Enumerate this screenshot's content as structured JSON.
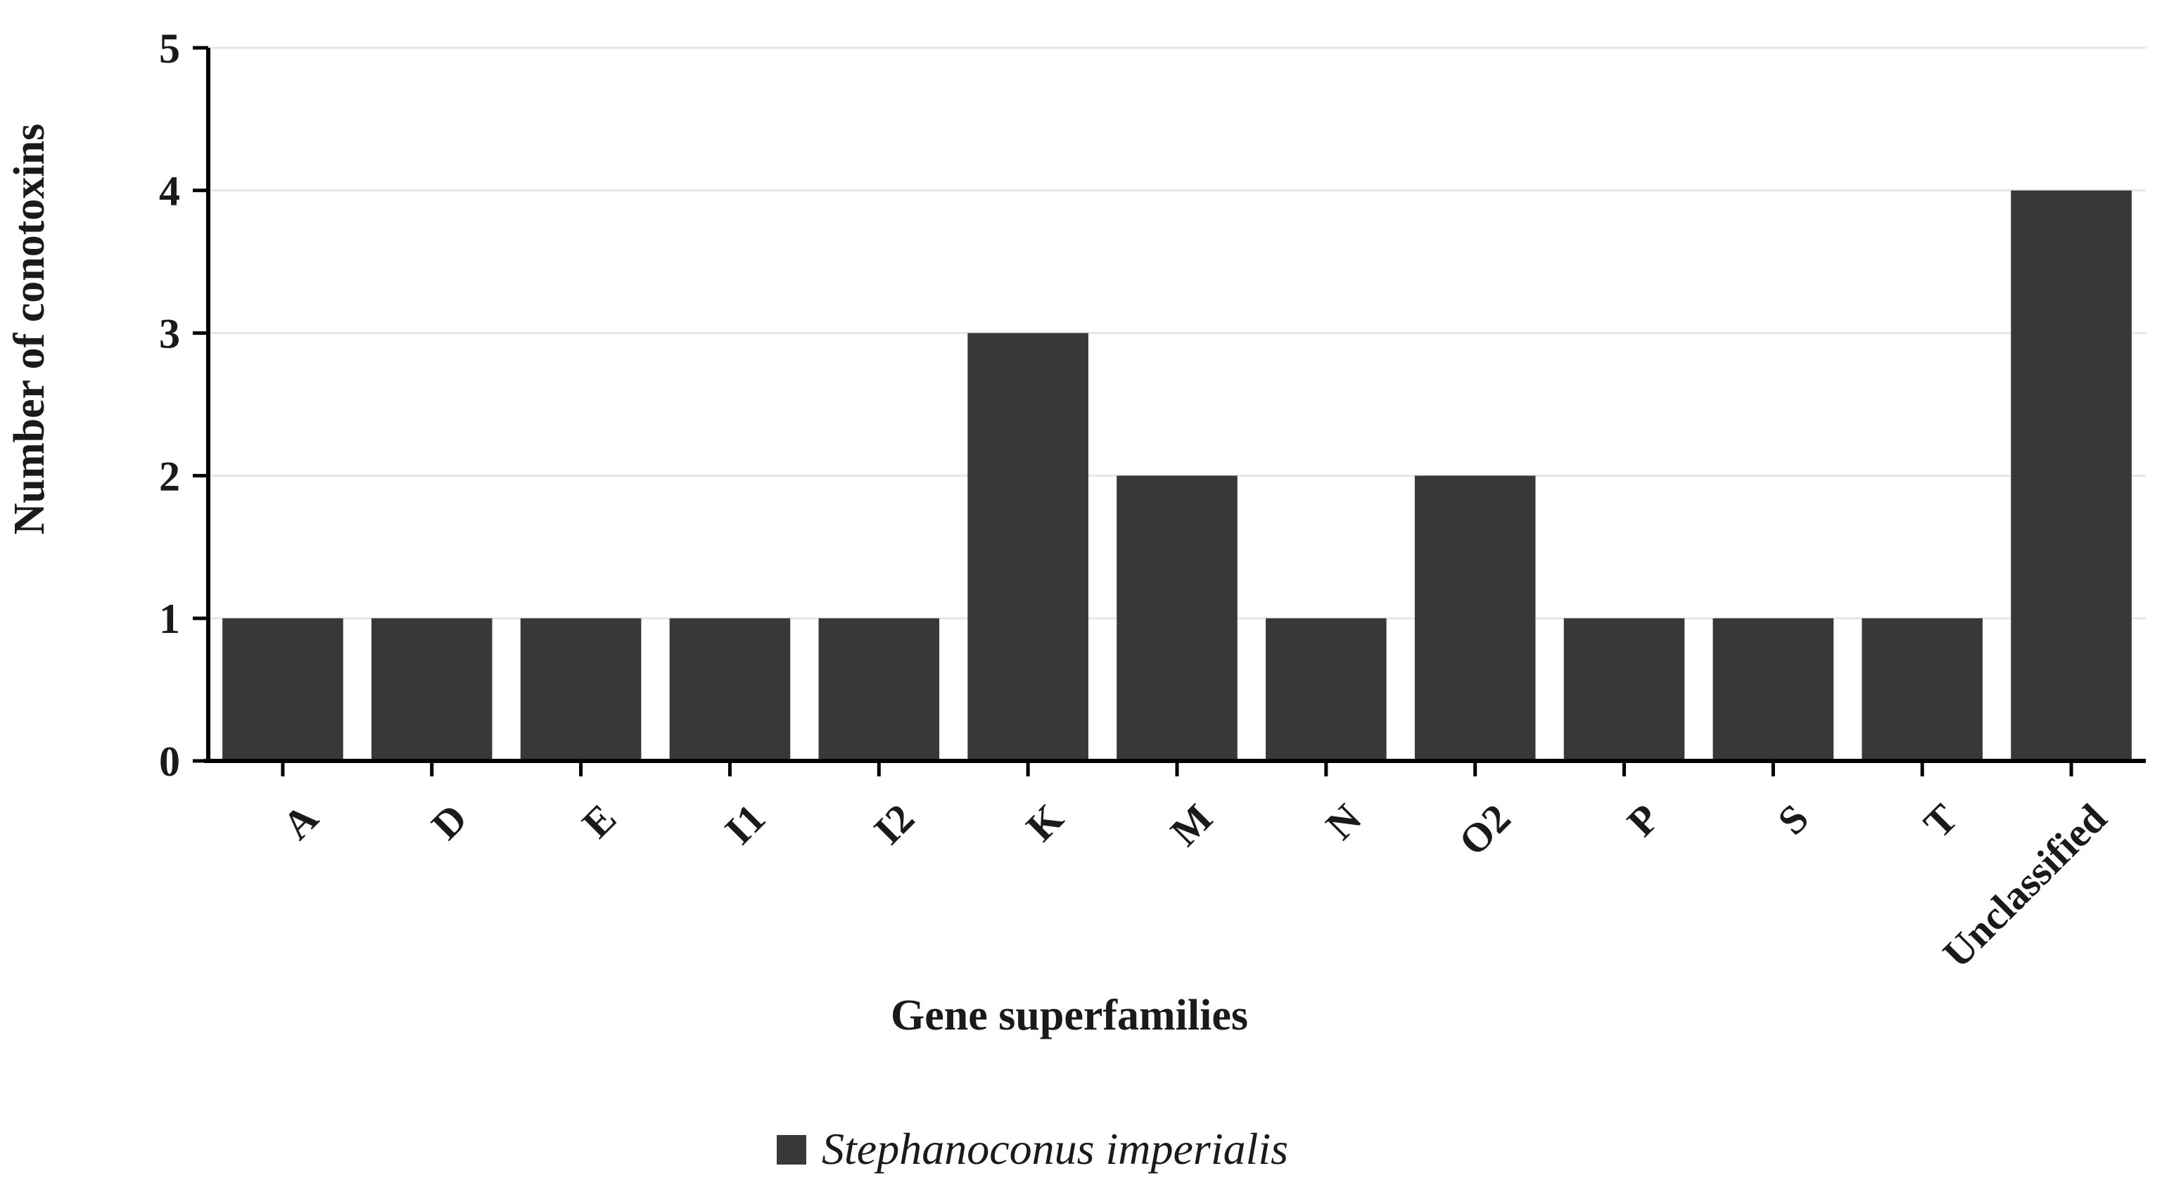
{
  "chart_data": {
    "type": "bar",
    "title": "",
    "xlabel": "Gene superfamilies",
    "ylabel": "Number of conotoxins",
    "categories": [
      "A",
      "D",
      "E",
      "I1",
      "I2",
      "K",
      "M",
      "N",
      "O2",
      "P",
      "S",
      "T",
      "Unclassified"
    ],
    "series": [
      {
        "name": "Stephanoconus imperialis",
        "values": [
          1,
          1,
          1,
          1,
          1,
          3,
          2,
          1,
          2,
          1,
          1,
          1,
          4
        ],
        "color": "#383838"
      }
    ],
    "ylim": [
      0,
      5
    ],
    "yticks": [
      0,
      1,
      2,
      3,
      4,
      5
    ],
    "grid": true,
    "legend_position": "bottom-center"
  }
}
